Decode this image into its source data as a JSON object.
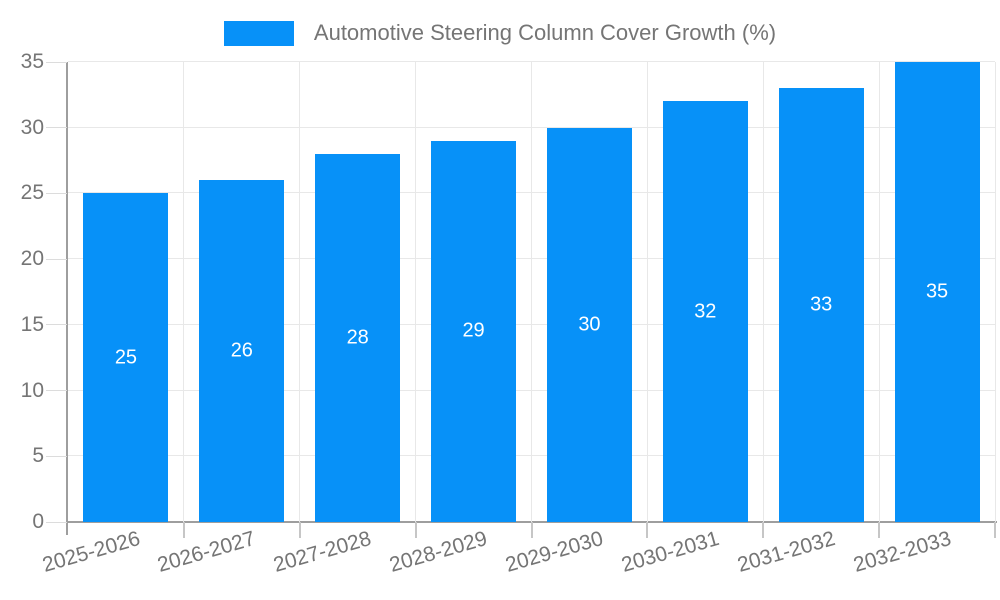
{
  "chart_data": {
    "type": "bar",
    "title": "",
    "legend": {
      "label": "Automotive Steering Column Cover Growth (%)",
      "position": "top"
    },
    "categories": [
      "2025-2026",
      "2026-2027",
      "2027-2028",
      "2028-2029",
      "2029-2030",
      "2030-2031",
      "2031-2032",
      "2032-2033"
    ],
    "values": [
      25,
      26,
      28,
      29,
      30,
      32,
      33,
      35
    ],
    "value_labels": [
      "25",
      "26",
      "28",
      "29",
      "30",
      "32",
      "33",
      "35"
    ],
    "xlabel": "",
    "ylabel": "",
    "ylim": [
      0,
      35
    ],
    "ytick_step": 5,
    "yticks": [
      0,
      5,
      10,
      15,
      20,
      25,
      30,
      35
    ],
    "ytick_labels": [
      "0",
      "5",
      "10",
      "15",
      "20",
      "25",
      "30",
      "35"
    ],
    "grid": true,
    "x_label_rotation_deg": -16,
    "colors": {
      "bar": "#0791f8",
      "value_label": "#ffffff",
      "axis_text": "#757575",
      "axis_line": "#9e9e9e",
      "gridline": "#e8e8e8",
      "background": "#ffffff"
    }
  }
}
